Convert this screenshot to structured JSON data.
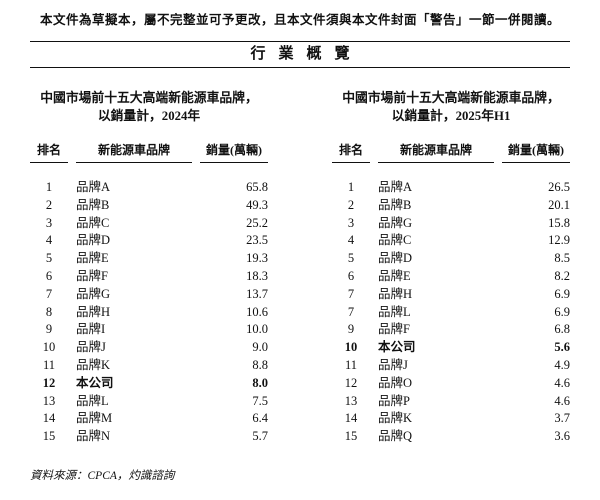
{
  "disclaimer": "本文件為草擬本，屬不完整並可予更改，且本文件須與本文件封面「警告」一節一併閱讀。",
  "section_title": "行業概覽",
  "source_note": "資料來源：CPCA，灼識諮詢",
  "text_color": "#111111",
  "tables": [
    {
      "title_line1": "中國市場前十五大高端新能源車品牌，",
      "title_line2": "以銷量計，2024年",
      "columns": [
        "排名",
        "新能源車品牌",
        "銷量(萬輛)"
      ],
      "rows": [
        {
          "rank": "1",
          "brand": "品牌A",
          "sales": "65.8",
          "highlight": false
        },
        {
          "rank": "2",
          "brand": "品牌B",
          "sales": "49.3",
          "highlight": false
        },
        {
          "rank": "3",
          "brand": "品牌C",
          "sales": "25.2",
          "highlight": false
        },
        {
          "rank": "4",
          "brand": "品牌D",
          "sales": "23.5",
          "highlight": false
        },
        {
          "rank": "5",
          "brand": "品牌E",
          "sales": "19.3",
          "highlight": false
        },
        {
          "rank": "6",
          "brand": "品牌F",
          "sales": "18.3",
          "highlight": false
        },
        {
          "rank": "7",
          "brand": "品牌G",
          "sales": "13.7",
          "highlight": false
        },
        {
          "rank": "8",
          "brand": "品牌H",
          "sales": "10.6",
          "highlight": false
        },
        {
          "rank": "9",
          "brand": "品牌I",
          "sales": "10.0",
          "highlight": false
        },
        {
          "rank": "10",
          "brand": "品牌J",
          "sales": "9.0",
          "highlight": false
        },
        {
          "rank": "11",
          "brand": "品牌K",
          "sales": "8.8",
          "highlight": false
        },
        {
          "rank": "12",
          "brand": "本公司",
          "sales": "8.0",
          "highlight": true
        },
        {
          "rank": "13",
          "brand": "品牌L",
          "sales": "7.5",
          "highlight": false
        },
        {
          "rank": "14",
          "brand": "品牌M",
          "sales": "6.4",
          "highlight": false
        },
        {
          "rank": "15",
          "brand": "品牌N",
          "sales": "5.7",
          "highlight": false
        }
      ]
    },
    {
      "title_line1": "中國市場前十五大高端新能源車品牌，",
      "title_line2": "以銷量計，2025年H1",
      "columns": [
        "排名",
        "新能源車品牌",
        "銷量(萬輛)"
      ],
      "rows": [
        {
          "rank": "1",
          "brand": "品牌A",
          "sales": "26.5",
          "highlight": false
        },
        {
          "rank": "2",
          "brand": "品牌B",
          "sales": "20.1",
          "highlight": false
        },
        {
          "rank": "3",
          "brand": "品牌G",
          "sales": "15.8",
          "highlight": false
        },
        {
          "rank": "4",
          "brand": "品牌C",
          "sales": "12.9",
          "highlight": false
        },
        {
          "rank": "5",
          "brand": "品牌D",
          "sales": "8.5",
          "highlight": false
        },
        {
          "rank": "6",
          "brand": "品牌E",
          "sales": "8.2",
          "highlight": false
        },
        {
          "rank": "7",
          "brand": "品牌H",
          "sales": "6.9",
          "highlight": false
        },
        {
          "rank": "7",
          "brand": "品牌L",
          "sales": "6.9",
          "highlight": false
        },
        {
          "rank": "9",
          "brand": "品牌F",
          "sales": "6.8",
          "highlight": false
        },
        {
          "rank": "10",
          "brand": "本公司",
          "sales": "5.6",
          "highlight": true
        },
        {
          "rank": "11",
          "brand": "品牌J",
          "sales": "4.9",
          "highlight": false
        },
        {
          "rank": "12",
          "brand": "品牌O",
          "sales": "4.6",
          "highlight": false
        },
        {
          "rank": "13",
          "brand": "品牌P",
          "sales": "4.6",
          "highlight": false
        },
        {
          "rank": "14",
          "brand": "品牌K",
          "sales": "3.7",
          "highlight": false
        },
        {
          "rank": "15",
          "brand": "品牌Q",
          "sales": "3.6",
          "highlight": false
        }
      ]
    }
  ]
}
